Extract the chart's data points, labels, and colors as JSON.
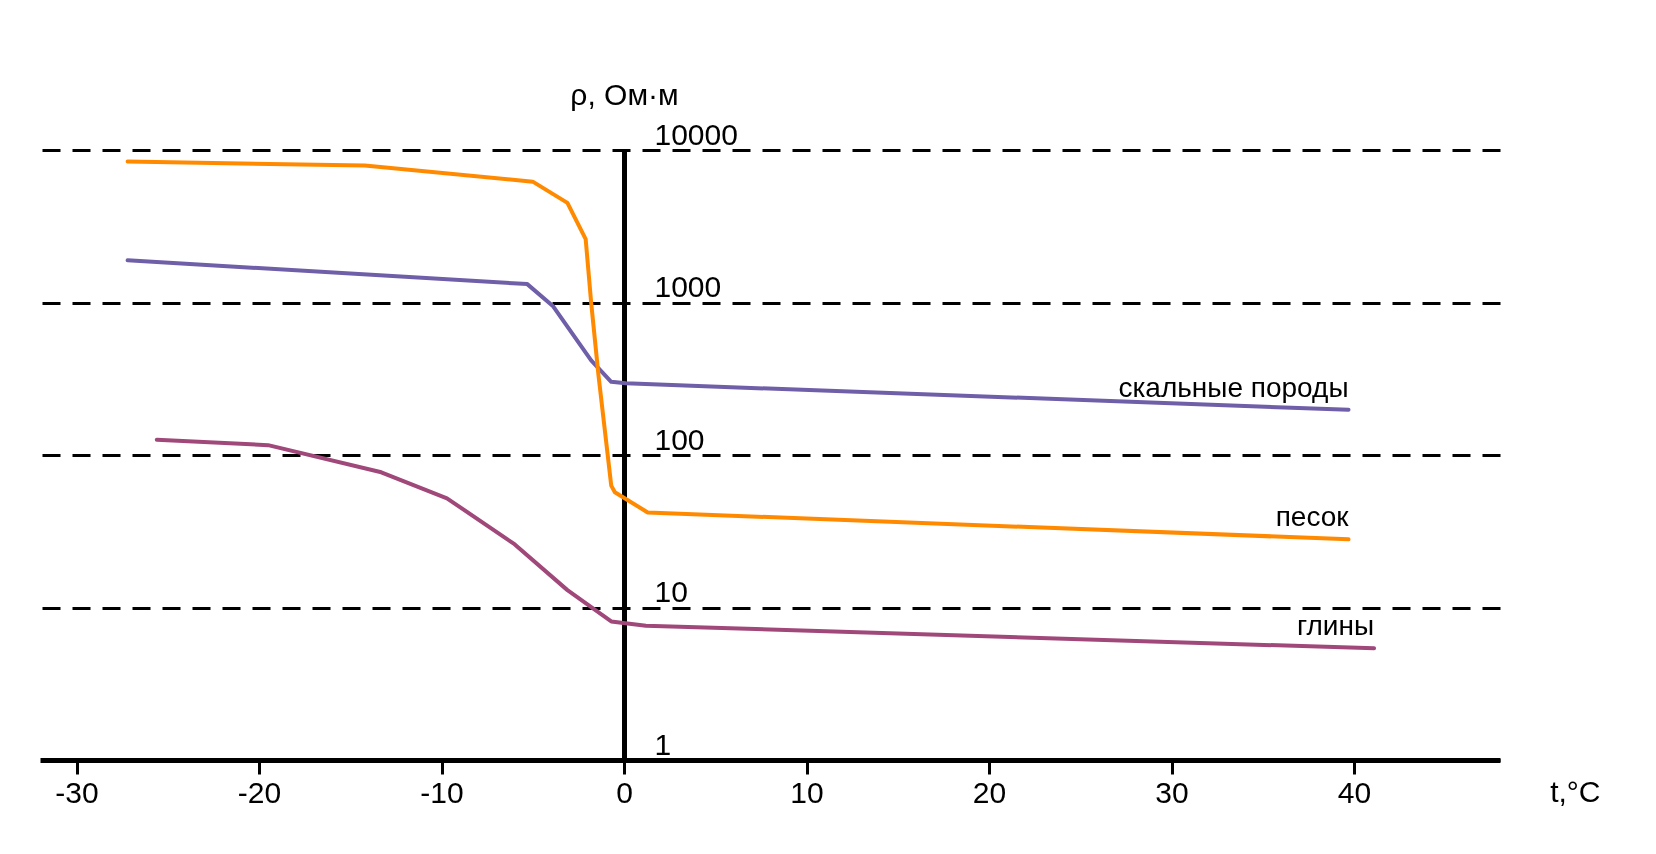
{
  "chart_data": {
    "type": "line",
    "ylabel": "ρ, Ом·м",
    "xlabel": "t,°C",
    "log": "y",
    "grid": "y",
    "legend": false,
    "line_style": "solid",
    "marker": "none",
    "xlim": [
      -32,
      48
    ],
    "xticks": [
      -30,
      -20,
      -10,
      0,
      10,
      20,
      30,
      40
    ],
    "ylim": [
      1,
      10000
    ],
    "yticks": [
      1,
      10,
      100,
      1000,
      10000
    ],
    "series": [
      {
        "name": "скальные породы",
        "color": "#6f5ea8",
        "x": [
          -27.2,
          -5.3,
          -3.9,
          -1.8,
          -0.7,
          0.1,
          39.7
        ],
        "values": [
          1890,
          1320,
          950,
          417,
          302,
          295,
          198
        ]
      },
      {
        "name": "песок",
        "color": "#ff8a00",
        "x": [
          -27.2,
          -14.2,
          -5,
          -3.1,
          -2.1,
          -1.8,
          -1.4,
          -0.7,
          -0.5,
          1.3,
          39.7
        ],
        "values": [
          8400,
          7900,
          6200,
          4500,
          2600,
          1000,
          335,
          63,
          57,
          42,
          28
        ]
      },
      {
        "name": "глины",
        "color": "#a0487a",
        "x": [
          -25.6,
          -19.5,
          -13.3,
          -9.7,
          -6,
          -3.1,
          -0.7,
          1.2,
          41.1
        ],
        "values": [
          126,
          116,
          77,
          52,
          26,
          13,
          8.1,
          7.6,
          5.4
        ]
      }
    ]
  }
}
